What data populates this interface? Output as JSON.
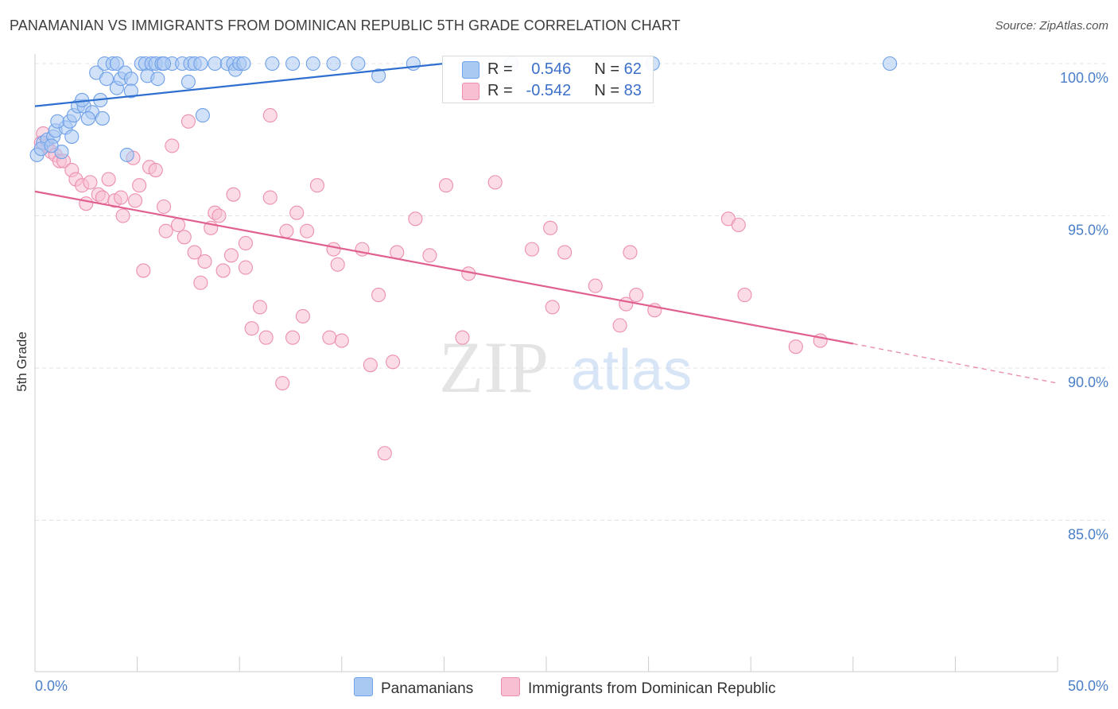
{
  "title": "PANAMANIAN VS IMMIGRANTS FROM DOMINICAN REPUBLIC 5TH GRADE CORRELATION CHART",
  "source": "Source: ZipAtlas.com",
  "watermark": {
    "zip": "ZIP",
    "atlas": "atlas"
  },
  "legend": {
    "rows": [
      {
        "r_label": "R =",
        "r_value": "0.546",
        "n_label": "N =",
        "n_value": "62"
      },
      {
        "r_label": "R =",
        "r_value": "-0.542",
        "n_label": "N =",
        "n_value": "83"
      }
    ]
  },
  "bottom_legend": [
    "Panamanians",
    "Immigrants from Dominican Republic"
  ],
  "chart_data": {
    "type": "scatter",
    "title": "PANAMANIAN VS IMMIGRANTS FROM DOMINICAN REPUBLIC 5TH GRADE CORRELATION CHART",
    "xlabel": "",
    "ylabel": "5th Grade",
    "xlim": [
      0,
      50
    ],
    "ylim": [
      80,
      101
    ],
    "x_tick_labels": [
      "0.0%",
      "50.0%"
    ],
    "y_ticks": [
      85,
      90,
      95,
      100
    ],
    "y_tick_labels": [
      "85.0%",
      "90.0%",
      "95.0%",
      "100.0%"
    ],
    "grid": true,
    "legend_position": "top-center",
    "series": [
      {
        "name": "Panamanians",
        "color": "#6fa0e8",
        "fill": "#a9c8f2",
        "line_color": "#2f6fcf",
        "R": 0.546,
        "N": 62,
        "trend": {
          "x0": 0,
          "y0": 98.6,
          "x1": 20,
          "y1": 100.0
        },
        "points": [
          [
            0.1,
            97.0
          ],
          [
            0.4,
            97.4
          ],
          [
            0.6,
            97.5
          ],
          [
            0.9,
            97.6
          ],
          [
            1.3,
            97.1
          ],
          [
            1.0,
            97.8
          ],
          [
            1.5,
            97.9
          ],
          [
            1.1,
            98.1
          ],
          [
            1.7,
            98.1
          ],
          [
            1.9,
            98.3
          ],
          [
            2.1,
            98.6
          ],
          [
            2.4,
            98.6
          ],
          [
            2.3,
            98.8
          ],
          [
            2.8,
            98.4
          ],
          [
            2.6,
            98.2
          ],
          [
            3.3,
            98.2
          ],
          [
            3.2,
            98.8
          ],
          [
            3.0,
            99.7
          ],
          [
            3.4,
            100.0
          ],
          [
            3.5,
            99.5
          ],
          [
            3.8,
            100.0
          ],
          [
            4.0,
            100.0
          ],
          [
            4.0,
            99.2
          ],
          [
            4.2,
            99.5
          ],
          [
            4.4,
            99.7
          ],
          [
            4.7,
            99.5
          ],
          [
            4.7,
            99.1
          ],
          [
            5.2,
            100.0
          ],
          [
            5.4,
            100.0
          ],
          [
            5.5,
            99.6
          ],
          [
            5.7,
            100.0
          ],
          [
            5.9,
            100.0
          ],
          [
            6.0,
            99.5
          ],
          [
            6.2,
            100.0
          ],
          [
            6.7,
            100.0
          ],
          [
            7.2,
            100.0
          ],
          [
            7.5,
            99.4
          ],
          [
            7.6,
            100.0
          ],
          [
            7.8,
            100.0
          ],
          [
            8.1,
            100.0
          ],
          [
            8.2,
            98.3
          ],
          [
            8.8,
            100.0
          ],
          [
            9.4,
            100.0
          ],
          [
            9.7,
            100.0
          ],
          [
            9.8,
            99.8
          ],
          [
            10.0,
            100.0
          ],
          [
            10.2,
            100.0
          ],
          [
            11.6,
            100.0
          ],
          [
            12.6,
            100.0
          ],
          [
            13.6,
            100.0
          ],
          [
            14.6,
            100.0
          ],
          [
            15.8,
            100.0
          ],
          [
            16.8,
            99.6
          ],
          [
            18.5,
            100.0
          ],
          [
            23.3,
            100.0
          ],
          [
            30.2,
            100.0
          ],
          [
            41.8,
            100.0
          ],
          [
            4.5,
            97.0
          ],
          [
            0.3,
            97.2
          ],
          [
            1.8,
            97.6
          ],
          [
            6.3,
            100.0
          ],
          [
            0.8,
            97.3
          ]
        ]
      },
      {
        "name": "Immigrants from Dominican Republic",
        "color": "#ec8fae",
        "fill": "#f7bfd1",
        "line_color": "#e06090",
        "R": -0.542,
        "N": 83,
        "trend": {
          "x0": 0,
          "y0": 95.8,
          "x1": 40,
          "y1": 90.8,
          "dash_to_x": 50,
          "dash_to_y": 89.5
        },
        "points": [
          [
            0.3,
            97.4
          ],
          [
            0.4,
            97.7
          ],
          [
            0.6,
            97.3
          ],
          [
            0.8,
            97.1
          ],
          [
            1.0,
            97.0
          ],
          [
            1.2,
            96.8
          ],
          [
            1.4,
            96.8
          ],
          [
            1.8,
            96.5
          ],
          [
            2.0,
            96.2
          ],
          [
            2.3,
            96.0
          ],
          [
            2.5,
            95.4
          ],
          [
            2.7,
            96.1
          ],
          [
            3.1,
            95.7
          ],
          [
            3.3,
            95.6
          ],
          [
            3.6,
            96.2
          ],
          [
            3.9,
            95.5
          ],
          [
            4.2,
            95.6
          ],
          [
            4.3,
            95.0
          ],
          [
            4.8,
            96.9
          ],
          [
            4.9,
            95.5
          ],
          [
            5.1,
            96.0
          ],
          [
            5.3,
            93.2
          ],
          [
            5.6,
            96.6
          ],
          [
            5.9,
            96.5
          ],
          [
            6.3,
            95.3
          ],
          [
            6.4,
            94.5
          ],
          [
            6.7,
            97.3
          ],
          [
            7.0,
            94.7
          ],
          [
            7.3,
            94.3
          ],
          [
            7.5,
            98.1
          ],
          [
            7.8,
            93.8
          ],
          [
            8.1,
            92.8
          ],
          [
            8.3,
            93.5
          ],
          [
            8.6,
            94.6
          ],
          [
            8.8,
            95.1
          ],
          [
            9.0,
            95.0
          ],
          [
            9.2,
            93.2
          ],
          [
            9.6,
            93.7
          ],
          [
            9.7,
            95.7
          ],
          [
            10.3,
            94.1
          ],
          [
            10.3,
            93.3
          ],
          [
            10.6,
            91.3
          ],
          [
            11.0,
            92.0
          ],
          [
            11.3,
            91.0
          ],
          [
            11.5,
            95.6
          ],
          [
            11.5,
            98.3
          ],
          [
            12.1,
            89.5
          ],
          [
            12.3,
            94.5
          ],
          [
            12.6,
            91.0
          ],
          [
            12.8,
            95.1
          ],
          [
            13.1,
            91.7
          ],
          [
            13.3,
            94.5
          ],
          [
            13.8,
            96.0
          ],
          [
            14.4,
            91.0
          ],
          [
            14.6,
            93.9
          ],
          [
            14.8,
            93.4
          ],
          [
            15.0,
            90.9
          ],
          [
            16.0,
            93.9
          ],
          [
            16.4,
            90.1
          ],
          [
            16.8,
            92.4
          ],
          [
            17.1,
            87.2
          ],
          [
            17.5,
            90.2
          ],
          [
            17.7,
            93.8
          ],
          [
            18.6,
            94.9
          ],
          [
            19.3,
            93.7
          ],
          [
            20.1,
            96.0
          ],
          [
            20.9,
            91.0
          ],
          [
            21.2,
            93.1
          ],
          [
            22.5,
            96.1
          ],
          [
            24.3,
            93.9
          ],
          [
            25.2,
            94.6
          ],
          [
            25.3,
            92.0
          ],
          [
            25.9,
            93.8
          ],
          [
            27.4,
            92.7
          ],
          [
            28.6,
            91.4
          ],
          [
            28.9,
            92.1
          ],
          [
            29.1,
            93.8
          ],
          [
            29.4,
            92.4
          ],
          [
            30.3,
            91.9
          ],
          [
            33.9,
            94.9
          ],
          [
            34.4,
            94.7
          ],
          [
            34.7,
            92.4
          ],
          [
            37.2,
            90.7
          ],
          [
            38.4,
            90.9
          ]
        ]
      }
    ]
  }
}
